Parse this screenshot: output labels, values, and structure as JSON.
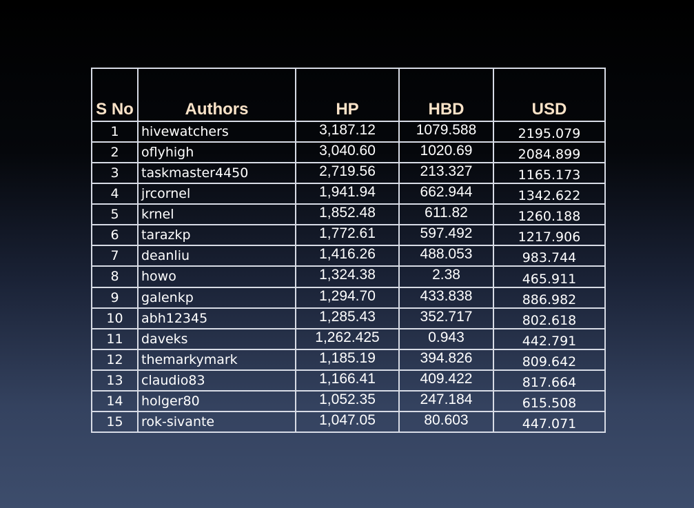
{
  "table": {
    "headers": {
      "sno": "S No",
      "authors": "Authors",
      "hp": "HP",
      "hbd": "HBD",
      "usd": "USD"
    },
    "rows": [
      {
        "sno": "1",
        "author": "hivewatchers",
        "hp": "3,187.12",
        "hbd": "1079.588",
        "usd": "2195.079"
      },
      {
        "sno": "2",
        "author": "oflyhigh",
        "hp": "3,040.60",
        "hbd": "1020.69",
        "usd": "2084.899"
      },
      {
        "sno": "3",
        "author": "taskmaster4450",
        "hp": "2,719.56",
        "hbd": "213.327",
        "usd": "1165.173"
      },
      {
        "sno": "4",
        "author": "jrcornel",
        "hp": "1,941.94",
        "hbd": "662.944",
        "usd": "1342.622"
      },
      {
        "sno": "5",
        "author": "krnel",
        "hp": "1,852.48",
        "hbd": "611.82",
        "usd": "1260.188"
      },
      {
        "sno": "6",
        "author": "tarazkp",
        "hp": "1,772.61",
        "hbd": "597.492",
        "usd": "1217.906"
      },
      {
        "sno": "7",
        "author": "deanliu",
        "hp": "1,416.26",
        "hbd": "488.053",
        "usd": "983.744"
      },
      {
        "sno": "8",
        "author": "howo",
        "hp": "1,324.38",
        "hbd": "2.38",
        "usd": "465.911"
      },
      {
        "sno": "9",
        "author": "galenkp",
        "hp": "1,294.70",
        "hbd": "433.838",
        "usd": "886.982"
      },
      {
        "sno": "10",
        "author": "abh12345",
        "hp": "1,285.43",
        "hbd": "352.717",
        "usd": "802.618"
      },
      {
        "sno": "11",
        "author": "daveks",
        "hp": "1,262.425",
        "hbd": "0.943",
        "usd": "442.791"
      },
      {
        "sno": "12",
        "author": "themarkymark",
        "hp": "1,185.19",
        "hbd": "394.826",
        "usd": "809.642"
      },
      {
        "sno": "13",
        "author": "claudio83",
        "hp": "1,166.41",
        "hbd": "409.422",
        "usd": "817.664"
      },
      {
        "sno": "14",
        "author": "holger80",
        "hp": "1,052.35",
        "hbd": "247.184",
        "usd": "615.508"
      },
      {
        "sno": "15",
        "author": "rok-sivante",
        "hp": "1,047.05",
        "hbd": "80.603",
        "usd": "447.071"
      }
    ]
  }
}
